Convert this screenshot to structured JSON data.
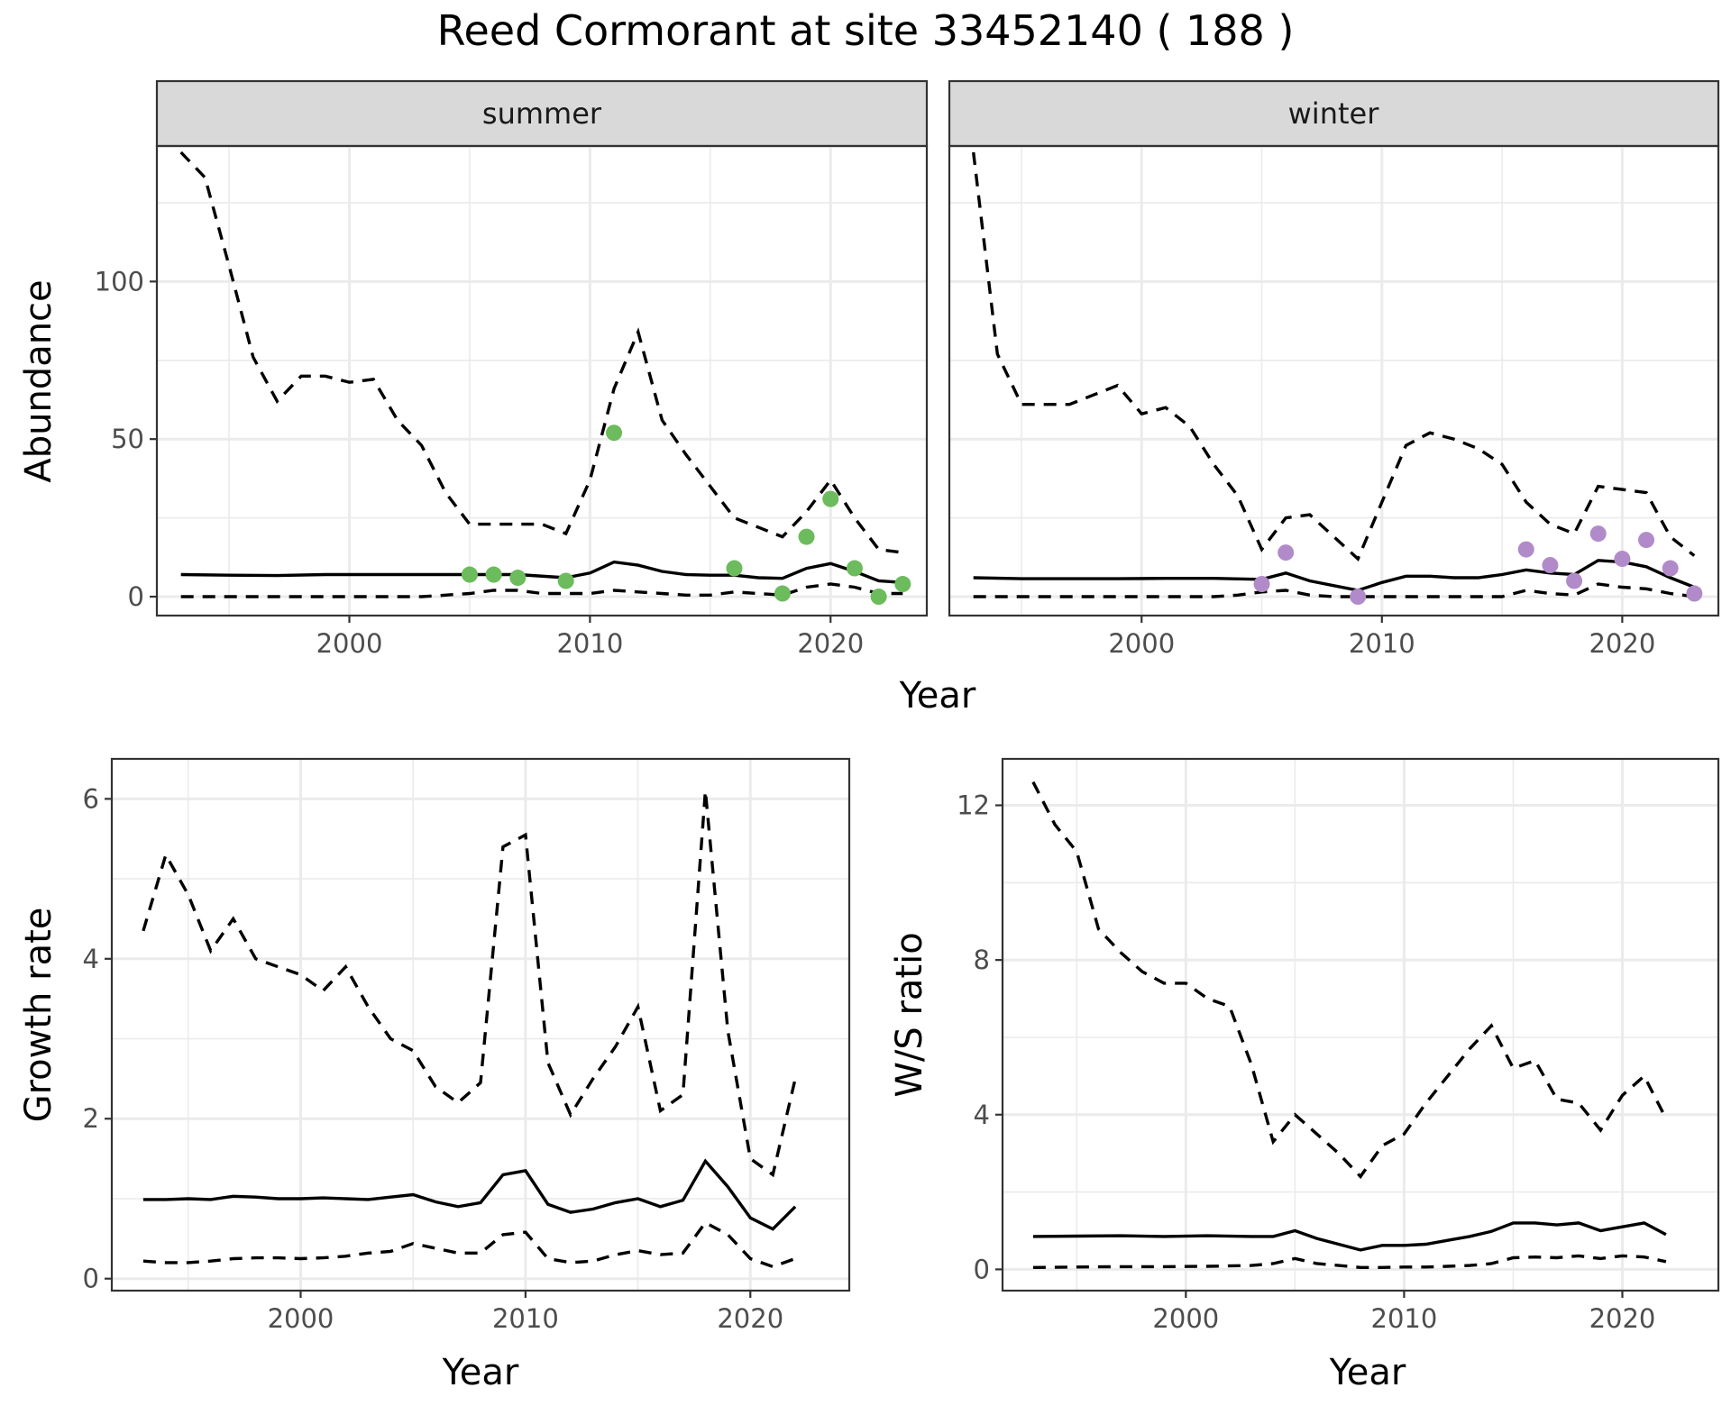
{
  "title": "Reed Cormorant at site 33452140 ( 188 )",
  "colors": {
    "summer_points": "#6cbb5c",
    "winter_points": "#b18bc9"
  },
  "chart_data": [
    {
      "type": "line",
      "facet_strip": "summer",
      "xlabel": "Year",
      "ylabel": "Abundance",
      "xlim": [
        1992,
        2024
      ],
      "ylim": [
        -6,
        143
      ],
      "xticks": [
        2000,
        2010,
        2020
      ],
      "yticks": [
        0,
        50,
        100
      ],
      "grid": true,
      "series": [
        {
          "style": "solid",
          "x": [
            1993,
            1995,
            1997,
            1999,
            2001,
            2003,
            2005,
            2007,
            2009,
            2010,
            2011,
            2012,
            2013,
            2014,
            2015,
            2016,
            2017,
            2018,
            2019,
            2020,
            2021,
            2022,
            2023
          ],
          "y": [
            7,
            6.8,
            6.7,
            7,
            7,
            7,
            7,
            7,
            6,
            7.5,
            11,
            10,
            8,
            7,
            6.8,
            6.8,
            6,
            5.8,
            9,
            10.5,
            8,
            5,
            4.5
          ]
        },
        {
          "style": "dashed",
          "x": [
            1993,
            1994,
            1995,
            1996,
            1997,
            1998,
            1999,
            2000,
            2001,
            2002,
            2003,
            2004,
            2005,
            2006,
            2007,
            2008,
            2009,
            2010,
            2011,
            2012,
            2013,
            2014,
            2015,
            2016,
            2017,
            2018,
            2019,
            2020,
            2021,
            2022,
            2023
          ],
          "y": [
            141,
            133,
            105,
            76,
            62,
            70,
            70,
            68,
            69,
            56,
            48,
            33,
            23,
            23,
            23,
            23,
            20,
            37,
            66,
            84,
            56,
            45,
            35,
            25,
            22,
            19,
            27,
            37,
            25,
            15,
            14
          ]
        },
        {
          "style": "dashed",
          "x": [
            1993,
            1995,
            1997,
            1999,
            2001,
            2003,
            2004,
            2005,
            2006,
            2007,
            2008,
            2009,
            2010,
            2011,
            2012,
            2013,
            2014,
            2015,
            2016,
            2017,
            2018,
            2019,
            2020,
            2021,
            2022,
            2023
          ],
          "y": [
            0,
            0,
            0,
            0,
            0,
            0,
            0.5,
            1,
            2,
            2,
            1,
            1,
            1,
            2,
            1.5,
            1,
            0.5,
            0.5,
            1.5,
            1,
            0.5,
            3,
            4,
            3,
            1,
            1
          ]
        },
        {
          "style": "points",
          "x": [
            2005,
            2006,
            2007,
            2009,
            2011,
            2016,
            2018,
            2019,
            2020,
            2021,
            2022,
            2023
          ],
          "y": [
            7,
            7,
            6,
            5,
            52,
            9,
            1,
            19,
            31,
            9,
            0,
            4
          ]
        }
      ]
    },
    {
      "type": "line",
      "facet_strip": "winter",
      "xlabel": "Year",
      "ylabel": "Abundance",
      "xlim": [
        1992,
        2024
      ],
      "ylim": [
        -6,
        143
      ],
      "xticks": [
        2000,
        2010,
        2020
      ],
      "yticks": [
        0,
        50,
        100
      ],
      "grid": true,
      "series": [
        {
          "style": "solid",
          "x": [
            1993,
            1995,
            1997,
            1999,
            2001,
            2003,
            2005,
            2006,
            2007,
            2008,
            2009,
            2010,
            2011,
            2012,
            2013,
            2014,
            2015,
            2016,
            2017,
            2018,
            2019,
            2020,
            2021,
            2022,
            2023
          ],
          "y": [
            6,
            5.7,
            5.7,
            5.7,
            5.8,
            5.8,
            5.5,
            7.5,
            5,
            3.5,
            2,
            4.5,
            6.5,
            6.5,
            6,
            6,
            7,
            8.5,
            7.5,
            7,
            11.5,
            11,
            9.5,
            6,
            3
          ]
        },
        {
          "style": "dashed",
          "x": [
            1993,
            1994,
            1995,
            1996,
            1997,
            1998,
            1999,
            2000,
            2001,
            2002,
            2003,
            2004,
            2005,
            2006,
            2007,
            2008,
            2009,
            2010,
            2011,
            2012,
            2013,
            2014,
            2015,
            2016,
            2017,
            2018,
            2019,
            2020,
            2021,
            2022,
            2023
          ],
          "y": [
            141,
            77,
            61,
            61,
            61,
            64,
            67,
            58,
            60,
            54,
            42,
            32,
            15,
            25,
            26,
            19,
            12,
            30,
            48,
            52,
            50,
            47,
            42,
            30,
            23,
            20,
            35,
            34,
            33,
            19,
            13
          ]
        },
        {
          "style": "dashed",
          "x": [
            1993,
            1995,
            1997,
            1999,
            2001,
            2003,
            2004,
            2005,
            2006,
            2007,
            2008,
            2009,
            2010,
            2011,
            2012,
            2013,
            2014,
            2015,
            2016,
            2017,
            2018,
            2019,
            2020,
            2021,
            2022,
            2023
          ],
          "y": [
            0,
            0,
            0,
            0,
            0,
            0,
            0.5,
            1.5,
            2,
            0.5,
            0,
            0,
            0,
            0,
            0,
            0,
            0,
            0,
            2,
            1,
            0.5,
            4,
            3,
            2.5,
            1,
            0
          ]
        },
        {
          "style": "points",
          "x": [
            2005,
            2006,
            2009,
            2016,
            2017,
            2018,
            2019,
            2020,
            2021,
            2022,
            2023
          ],
          "y": [
            4,
            14,
            0,
            15,
            10,
            5,
            20,
            12,
            18,
            9,
            1
          ]
        }
      ]
    },
    {
      "type": "line",
      "xlabel": "Year",
      "ylabel": "Growth rate",
      "xlim": [
        1991.6,
        2024.4
      ],
      "ylim": [
        -0.15,
        6.5
      ],
      "xticks": [
        2000,
        2010,
        2020
      ],
      "yticks": [
        0,
        2,
        4,
        6
      ],
      "grid": true,
      "series": [
        {
          "style": "solid",
          "x": [
            1993,
            1994,
            1995,
            1996,
            1997,
            1998,
            1999,
            2000,
            2001,
            2002,
            2003,
            2004,
            2005,
            2006,
            2007,
            2008,
            2009,
            2010,
            2011,
            2012,
            2013,
            2014,
            2015,
            2016,
            2017,
            2018,
            2019,
            2020,
            2021,
            2022
          ],
          "y": [
            0.99,
            0.99,
            1,
            0.99,
            1.03,
            1.02,
            1,
            1,
            1.01,
            1,
            0.99,
            1.02,
            1.05,
            0.96,
            0.9,
            0.95,
            1.3,
            1.35,
            0.93,
            0.83,
            0.87,
            0.95,
            1,
            0.9,
            0.98,
            1.47,
            1.15,
            0.76,
            0.62,
            0.9
          ]
        },
        {
          "style": "dashed",
          "x": [
            1993,
            1994,
            1995,
            1996,
            1997,
            1998,
            1999,
            2000,
            2001,
            2002,
            2003,
            2004,
            2005,
            2006,
            2007,
            2008,
            2009,
            2010,
            2011,
            2012,
            2013,
            2014,
            2015,
            2016,
            2017,
            2018,
            2019,
            2020,
            2021,
            2022
          ],
          "y": [
            4.35,
            5.3,
            4.8,
            4.1,
            4.5,
            4,
            3.9,
            3.8,
            3.6,
            3.9,
            3.4,
            3,
            2.85,
            2.4,
            2.2,
            2.45,
            5.4,
            5.55,
            2.7,
            2.05,
            2.5,
            2.9,
            3.4,
            2.1,
            2.3,
            6.1,
            3.1,
            1.5,
            1.3,
            2.5
          ]
        },
        {
          "style": "dashed",
          "x": [
            1993,
            1994,
            1995,
            1996,
            1997,
            1998,
            1999,
            2000,
            2001,
            2002,
            2003,
            2004,
            2005,
            2006,
            2007,
            2008,
            2009,
            2010,
            2011,
            2012,
            2013,
            2014,
            2015,
            2016,
            2017,
            2018,
            2019,
            2020,
            2021,
            2022
          ],
          "y": [
            0.22,
            0.2,
            0.2,
            0.22,
            0.25,
            0.26,
            0.26,
            0.25,
            0.26,
            0.28,
            0.32,
            0.34,
            0.44,
            0.38,
            0.32,
            0.32,
            0.55,
            0.58,
            0.25,
            0.2,
            0.22,
            0.3,
            0.35,
            0.3,
            0.32,
            0.7,
            0.55,
            0.25,
            0.15,
            0.25
          ]
        }
      ]
    },
    {
      "type": "line",
      "xlabel": "Year",
      "ylabel": "W/S ratio",
      "xlim": [
        1991.6,
        2024.4
      ],
      "ylim": [
        -0.55,
        13.2
      ],
      "xticks": [
        2000,
        2010,
        2020
      ],
      "yticks": [
        0,
        4,
        8,
        12
      ],
      "grid": true,
      "series": [
        {
          "style": "solid",
          "x": [
            1993,
            1995,
            1997,
            1999,
            2001,
            2003,
            2004,
            2005,
            2006,
            2007,
            2008,
            2009,
            2010,
            2011,
            2012,
            2013,
            2014,
            2015,
            2016,
            2017,
            2018,
            2019,
            2020,
            2021,
            2022
          ],
          "y": [
            0.85,
            0.86,
            0.87,
            0.85,
            0.87,
            0.85,
            0.85,
            1,
            0.8,
            0.65,
            0.5,
            0.62,
            0.62,
            0.65,
            0.75,
            0.85,
            0.98,
            1.2,
            1.2,
            1.15,
            1.2,
            1,
            1.1,
            1.2,
            0.9
          ]
        },
        {
          "style": "dashed",
          "x": [
            1993,
            1994,
            1995,
            1996,
            1997,
            1998,
            1999,
            2000,
            2001,
            2002,
            2003,
            2004,
            2005,
            2006,
            2007,
            2008,
            2009,
            2010,
            2011,
            2012,
            2013,
            2014,
            2015,
            2016,
            2017,
            2018,
            2019,
            2020,
            2021,
            2022
          ],
          "y": [
            12.6,
            11.5,
            10.8,
            8.8,
            8.2,
            7.7,
            7.4,
            7.4,
            7,
            6.8,
            5.3,
            3.3,
            4,
            3.5,
            3,
            2.4,
            3.2,
            3.5,
            4.3,
            5,
            5.7,
            6.3,
            5.2,
            5.4,
            4.4,
            4.3,
            3.6,
            4.5,
            5,
            3.9
          ]
        },
        {
          "style": "dashed",
          "x": [
            1993,
            1995,
            1997,
            1999,
            2001,
            2003,
            2004,
            2005,
            2006,
            2007,
            2008,
            2009,
            2010,
            2011,
            2012,
            2013,
            2014,
            2015,
            2016,
            2017,
            2018,
            2019,
            2020,
            2021,
            2022
          ],
          "y": [
            0.05,
            0.06,
            0.07,
            0.07,
            0.08,
            0.1,
            0.15,
            0.28,
            0.15,
            0.1,
            0.05,
            0.05,
            0.06,
            0.06,
            0.08,
            0.1,
            0.15,
            0.3,
            0.32,
            0.3,
            0.35,
            0.28,
            0.35,
            0.32,
            0.2
          ]
        }
      ]
    }
  ]
}
